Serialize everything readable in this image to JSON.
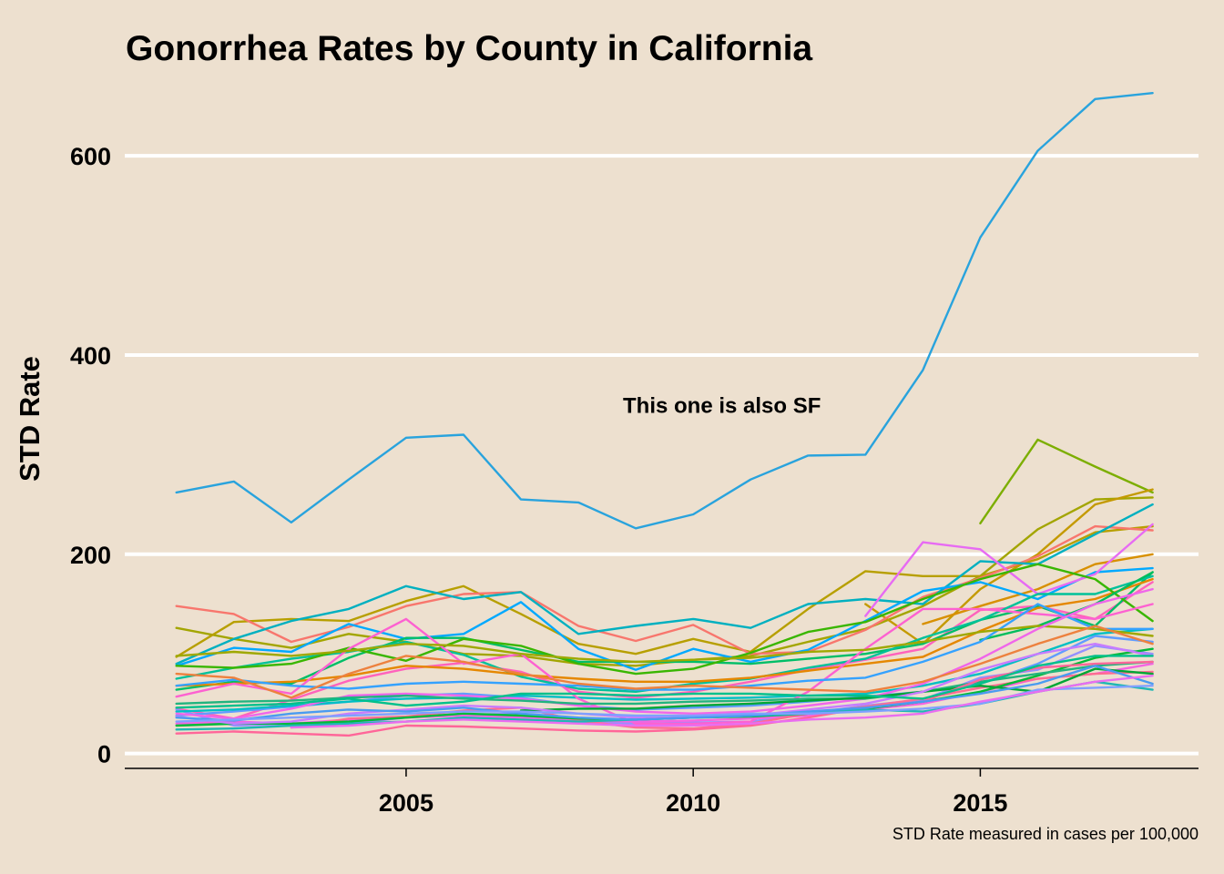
{
  "chart_data": {
    "type": "line",
    "title": "Gonorrhea Rates by County in California",
    "ylabel": "STD Rate",
    "xlabel": "",
    "caption": "STD Rate measured in cases per 100,000",
    "annotation": {
      "text": "This one is also SF",
      "x": 2010.5,
      "y": 350
    },
    "xlim": [
      2000.1,
      2018.8
    ],
    "ylim": [
      -15,
      665
    ],
    "x_ticks": [
      2005,
      2010,
      2015
    ],
    "y_ticks": [
      0,
      200,
      400,
      600
    ],
    "grid": "horizontal major lines",
    "legend": "none",
    "x": [
      2001,
      2002,
      2003,
      2004,
      2005,
      2006,
      2007,
      2008,
      2009,
      2010,
      2011,
      2012,
      2013,
      2014,
      2015,
      2016,
      2017,
      2018
    ],
    "series": [
      {
        "color": "#29a3dd",
        "values": [
          262,
          273,
          232,
          275,
          317,
          320,
          255,
          252,
          226,
          240,
          275,
          299,
          300,
          385,
          518,
          605,
          657,
          663
        ]
      },
      {
        "color": "#7cae00",
        "values": [
          null,
          null,
          null,
          null,
          null,
          null,
          null,
          null,
          null,
          null,
          null,
          null,
          null,
          null,
          231,
          315,
          288,
          262
        ]
      },
      {
        "color": "#a3a500",
        "values": [
          126,
          115,
          106,
          120,
          112,
          100,
          98,
          90,
          88,
          94,
          98,
          112,
          125,
          148,
          178,
          225,
          255,
          257
        ]
      },
      {
        "color": "#b79f00",
        "values": [
          97,
          132,
          135,
          133,
          153,
          168,
          140,
          110,
          100,
          115,
          102,
          145,
          183,
          178,
          178,
          195,
          222,
          228
        ]
      },
      {
        "color": "#c49a00",
        "values": [
          null,
          null,
          null,
          null,
          null,
          null,
          null,
          null,
          null,
          null,
          null,
          null,
          150,
          110,
          165,
          200,
          250,
          265
        ]
      },
      {
        "color": "#f8766d",
        "values": [
          148,
          140,
          112,
          127,
          148,
          160,
          162,
          128,
          113,
          129,
          100,
          102,
          124,
          157,
          176,
          198,
          228,
          224
        ]
      },
      {
        "color": "#d89000",
        "values": [
          null,
          null,
          null,
          null,
          null,
          null,
          null,
          null,
          null,
          null,
          null,
          null,
          null,
          130,
          148,
          165,
          190,
          200
        ]
      },
      {
        "color": "#00b0c0",
        "values": [
          90,
          115,
          133,
          145,
          168,
          155,
          162,
          120,
          128,
          135,
          126,
          150,
          155,
          150,
          193,
          190,
          220,
          250
        ]
      },
      {
        "color": "#00a9ff",
        "values": [
          88,
          106,
          102,
          130,
          115,
          120,
          152,
          105,
          84,
          105,
          92,
          104,
          133,
          163,
          172,
          155,
          182,
          186
        ]
      },
      {
        "color": "#e76bf3",
        "values": [
          null,
          null,
          null,
          null,
          null,
          null,
          null,
          null,
          null,
          null,
          null,
          null,
          138,
          212,
          205,
          160,
          180,
          230
        ]
      },
      {
        "color": "#ff62bc",
        "values": [
          45,
          35,
          54,
          73,
          85,
          91,
          82,
          62,
          56,
          62,
          72,
          84,
          94,
          105,
          144,
          148,
          135,
          172
        ]
      },
      {
        "color": "#00be67",
        "values": [
          64,
          72,
          70,
          96,
          116,
          116,
          104,
          92,
          92,
          92,
          90,
          95,
          100,
          110,
          134,
          148,
          128,
          182
        ]
      },
      {
        "color": "#00c19a",
        "values": [
          75,
          86,
          95,
          102,
          112,
          99,
          77,
          65,
          62,
          70,
          75,
          86,
          95,
          116,
          134,
          160,
          160,
          178
        ]
      },
      {
        "color": "#e58700",
        "values": [
          68,
          70,
          72,
          78,
          88,
          85,
          79,
          75,
          72,
          72,
          76,
          83,
          90,
          97,
          123,
          146,
          155,
          175
        ]
      },
      {
        "color": "#39b600",
        "values": [
          88,
          86,
          90,
          106,
          93,
          115,
          108,
          90,
          80,
          85,
          101,
          122,
          132,
          155,
          175,
          190,
          175,
          133
        ]
      },
      {
        "color": "#00bd5c",
        "values": [
          null,
          null,
          null,
          null,
          null,
          null,
          null,
          null,
          null,
          null,
          null,
          null,
          null,
          null,
          114,
          128,
          150,
          182
        ]
      },
      {
        "color": "#9590ff",
        "values": [
          44,
          28,
          30,
          30,
          36,
          39,
          40,
          32,
          30,
          31,
          32,
          40,
          48,
          54,
          76,
          84,
          108,
          100
        ]
      },
      {
        "color": "#619cff",
        "values": [
          38,
          42,
          47,
          52,
          58,
          60,
          56,
          48,
          44,
          46,
          48,
          52,
          57,
          62,
          70,
          90,
          118,
          112
        ]
      },
      {
        "color": "#00bfc4",
        "values": [
          42,
          44,
          48,
          52,
          55,
          56,
          58,
          56,
          54,
          55,
          56,
          58,
          60,
          68,
          80,
          100,
          120,
          125
        ]
      },
      {
        "color": "#fd61d1",
        "values": [
          57,
          70,
          60,
          105,
          135,
          90,
          100,
          55,
          30,
          30,
          32,
          62,
          105,
          145,
          145,
          140,
          135,
          150
        ]
      },
      {
        "color": "#00bb4e",
        "values": [
          null,
          null,
          null,
          null,
          null,
          null,
          null,
          null,
          null,
          null,
          null,
          null,
          null,
          null,
          null,
          null,
          null,
          null
        ]
      },
      {
        "color": "#35a2ff",
        "values": [
          68,
          74,
          68,
          65,
          70,
          72,
          70,
          68,
          64,
          64,
          68,
          73,
          76,
          92,
          112,
          150,
          125,
          125
        ]
      },
      {
        "color": "#9fa800",
        "values": [
          98,
          102,
          98,
          103,
          110,
          108,
          100,
          95,
          92,
          94,
          96,
          102,
          104,
          112,
          122,
          128,
          125,
          118
        ]
      },
      {
        "color": "#f564e3",
        "values": [
          30,
          32,
          30,
          34,
          36,
          38,
          36,
          33,
          32,
          33,
          35,
          38,
          44,
          50,
          62,
          75,
          80,
          90
        ]
      },
      {
        "color": "#ff6c91",
        "values": [
          null,
          null,
          26,
          35,
          37,
          43,
          46,
          33,
          26,
          25,
          30,
          40,
          47,
          55,
          66,
          75,
          80,
          82
        ]
      },
      {
        "color": "#f066ea",
        "values": [
          40,
          35,
          45,
          58,
          60,
          58,
          55,
          48,
          42,
          40,
          42,
          48,
          55,
          70,
          95,
          125,
          150,
          165
        ]
      },
      {
        "color": "#00ba38",
        "values": [
          28,
          30,
          30,
          32,
          36,
          40,
          38,
          35,
          34,
          36,
          37,
          40,
          45,
          52,
          62,
          78,
          96,
          105
        ]
      },
      {
        "color": "#22b47e",
        "values": [
          50,
          52,
          53,
          56,
          58,
          55,
          53,
          50,
          50,
          52,
          53,
          55,
          55,
          62,
          72,
          80,
          88,
          92
        ]
      },
      {
        "color": "#00b4ef",
        "values": [
          null,
          null,
          null,
          null,
          null,
          null,
          null,
          null,
          null,
          null,
          null,
          null,
          null,
          null,
          null,
          null,
          null,
          null
        ]
      },
      {
        "color": "#00a635",
        "values": [
          null,
          null,
          null,
          null,
          null,
          null,
          43,
          45,
          45,
          48,
          50,
          53,
          56,
          62,
          68,
          62,
          85,
          80
        ]
      },
      {
        "color": "#c77cff",
        "values": [
          37,
          30,
          32,
          40,
          44,
          48,
          46,
          40,
          36,
          36,
          38,
          44,
          50,
          62,
          84,
          100,
          110,
          98
        ]
      },
      {
        "color": "#ff6699",
        "values": [
          20,
          22,
          20,
          18,
          28,
          27,
          25,
          23,
          22,
          24,
          28,
          36,
          46,
          52,
          74,
          86,
          90,
          92
        ]
      },
      {
        "color": "#1fb7b3",
        "values": [
          24,
          25,
          28,
          30,
          32,
          36,
          34,
          32,
          34,
          36,
          38,
          40,
          44,
          42,
          50,
          62,
          72,
          64
        ]
      },
      {
        "color": "#4a9bf0",
        "values": [
          36,
          33,
          40,
          44,
          42,
          46,
          40,
          36,
          34,
          36,
          38,
          42,
          46,
          52,
          60,
          70,
          88,
          70
        ]
      },
      {
        "color": "#00c08b",
        "values": [
          46,
          48,
          50,
          55,
          48,
          52,
          60,
          60,
          58,
          60,
          60,
          58,
          58,
          55,
          70,
          88,
          98,
          98
        ]
      },
      {
        "color": "#7fa0ff",
        "values": [
          32,
          34,
          36,
          38,
          40,
          42,
          42,
          40,
          38,
          38,
          40,
          40,
          42,
          45,
          50,
          64,
          66,
          68
        ]
      },
      {
        "color": "#e96ef0",
        "values": [
          null,
          null,
          26,
          28,
          32,
          34,
          32,
          30,
          28,
          28,
          30,
          34,
          36,
          40,
          52,
          62,
          72,
          78
        ]
      },
      {
        "color": "#ed813e",
        "values": [
          80,
          76,
          56,
          80,
          98,
          92,
          80,
          70,
          65,
          68,
          66,
          64,
          62,
          72,
          90,
          110,
          128,
          110
        ]
      }
    ]
  }
}
